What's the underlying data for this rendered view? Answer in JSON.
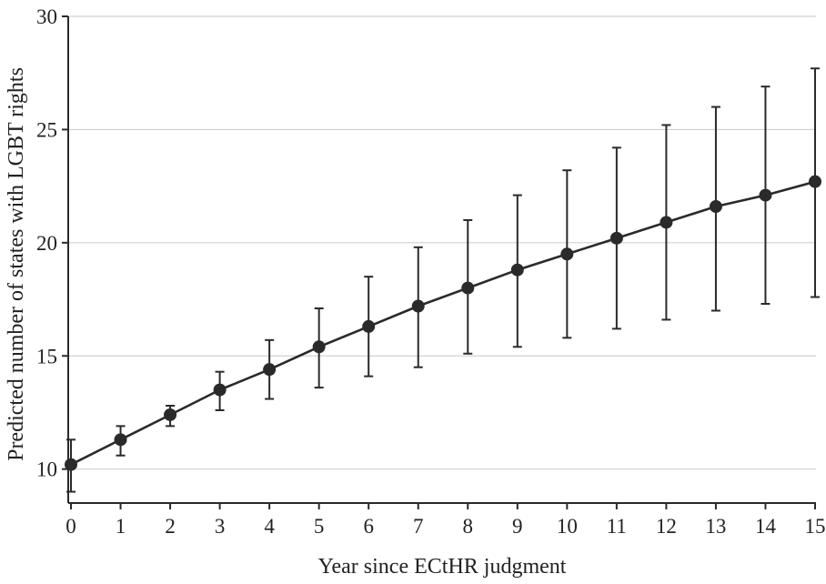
{
  "chart_data": {
    "type": "line",
    "title": "",
    "xlabel": "Year since ECtHR judgment",
    "ylabel": "Predicted number of states with LGBT rights",
    "xlim": [
      0,
      15
    ],
    "ylim": [
      8.5,
      30
    ],
    "x_ticks": [
      0,
      1,
      2,
      3,
      4,
      5,
      6,
      7,
      8,
      9,
      10,
      11,
      12,
      13,
      14,
      15
    ],
    "y_ticks": [
      10,
      15,
      20,
      25,
      30
    ],
    "grid": "horizontal",
    "series": [
      {
        "x": [
          0,
          1,
          2,
          3,
          4,
          5,
          6,
          7,
          8,
          9,
          10,
          11,
          12,
          13,
          14,
          15
        ],
        "values": [
          10.2,
          11.3,
          12.4,
          13.5,
          14.4,
          15.4,
          16.3,
          17.2,
          18.0,
          18.8,
          19.5,
          20.2,
          20.9,
          21.6,
          22.1,
          22.7
        ],
        "lower": [
          9.0,
          10.6,
          11.9,
          12.6,
          13.1,
          13.6,
          14.1,
          14.5,
          15.1,
          15.4,
          15.8,
          16.2,
          16.6,
          17.0,
          17.3,
          17.6
        ],
        "upper": [
          11.3,
          11.9,
          12.8,
          14.3,
          15.7,
          17.1,
          18.5,
          19.8,
          21.0,
          22.1,
          23.2,
          24.2,
          25.2,
          26.0,
          26.9,
          27.7
        ]
      }
    ],
    "colors": {
      "line": "#2a2a2a",
      "marker": "#2a2a2a",
      "grid": "#d0d0d0",
      "axis": "#2a2a2a"
    }
  }
}
